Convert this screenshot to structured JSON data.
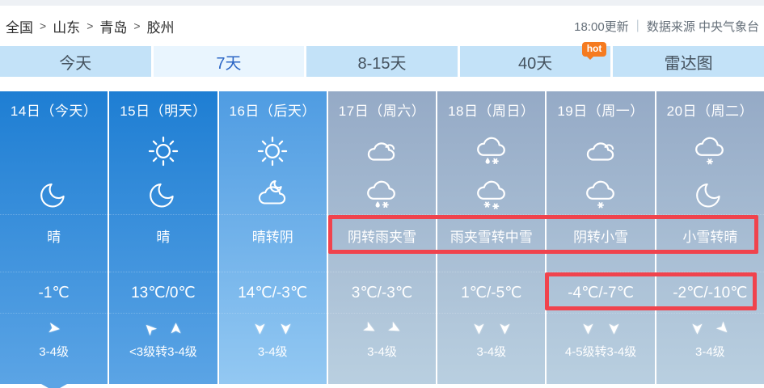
{
  "breadcrumb": {
    "items": [
      "全国",
      "山东",
      "青岛",
      "胶州"
    ],
    "separator": ">"
  },
  "update_info": {
    "time": "18:00更新",
    "divider": "|",
    "source": "数据来源 中央气象台"
  },
  "tabs": {
    "items": [
      {
        "label": "今天"
      },
      {
        "label": "7天",
        "active": true
      },
      {
        "label": "8-15天"
      },
      {
        "label": "40天",
        "badge": "hot"
      },
      {
        "label": "雷达图"
      }
    ],
    "colors": {
      "bg": "#c3e2f8",
      "text": "#45525e",
      "active_bg": "#e9f5fe",
      "active_text": "#2c66c5",
      "badge_bg": "#f57b20"
    }
  },
  "days": [
    {
      "date": "14日（今天）",
      "icon1": null,
      "icon2": "moon",
      "weather": "晴",
      "temp": "-1℃",
      "arrows": [
        8
      ],
      "wind": "3-4级",
      "theme": "blue",
      "selected": true
    },
    {
      "date": "15日（明天）",
      "icon1": "sun",
      "icon2": "moon",
      "weather": "晴",
      "temp": "13℃/0℃",
      "arrows": [
        -135,
        -90
      ],
      "wind": "<3级转3-4级",
      "theme": "blue"
    },
    {
      "date": "16日（后天）",
      "icon1": "sun",
      "icon2": "cloud-moon",
      "weather": "晴转阴",
      "temp": "14℃/-3℃",
      "arrows": [
        90,
        90
      ],
      "wind": "3-4级",
      "theme": "light"
    },
    {
      "date": "17日（周六）",
      "icon1": "cloud",
      "icon2": "sleet",
      "weather": "阴转雨夹雪",
      "temp": "3℃/-3℃",
      "arrows": [
        28,
        28
      ],
      "wind": "3-4级",
      "theme": "gray"
    },
    {
      "date": "18日（周日）",
      "icon1": "sleet",
      "icon2": "snow2",
      "weather": "雨夹雪转中雪",
      "temp": "1℃/-5℃",
      "arrows": [
        90,
        90
      ],
      "wind": "3-4级",
      "theme": "gray"
    },
    {
      "date": "19日（周一）",
      "icon1": "cloud",
      "icon2": "snow1",
      "weather": "阴转小雪",
      "temp": "-4℃/-7℃",
      "arrows": [
        90,
        90
      ],
      "wind": "4-5级转3-4级",
      "theme": "gray"
    },
    {
      "date": "20日（周二）",
      "icon1": "snow1",
      "icon2": "moon",
      "weather": "小雪转晴",
      "temp": "-2℃/-10℃",
      "arrows": [
        90,
        45
      ],
      "wind": "3-4级",
      "theme": "gray"
    }
  ],
  "themes": {
    "blue": [
      "#1e7ed3",
      "#5ba4e5"
    ],
    "light": [
      "#4f9ce2",
      "#93c8f2"
    ],
    "gray": [
      "#95aac6",
      "#b9cfe0"
    ]
  },
  "highlights": {
    "color": "#f0434d"
  }
}
